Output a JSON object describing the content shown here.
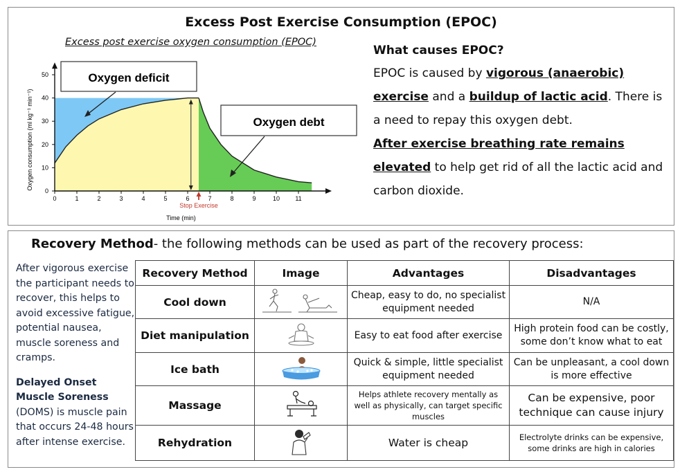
{
  "top": {
    "title": "Excess Post Exercise Consumption (EPOC)",
    "chart_caption": "Excess post exercise oxygen consumption (EPOC)",
    "question": "What causes EPOC?",
    "para1": {
      "t1": "EPOC is caused by ",
      "b1": "vigorous (anaerobic) exercise",
      "t2": " and a ",
      "b2": "buildup of lactic acid",
      "t3": ". There is a need to repay this oxygen debt."
    },
    "para2": {
      "b1": "After exercise breathing rate remains elevated",
      "t1": " to help get rid of all the lactic acid and carbon dioxide."
    }
  },
  "chart_data": {
    "type": "area",
    "title": "Excess post exercise oxygen consumption (EPOC)",
    "xlabel": "Time (min)",
    "ylabel": "Oxygen consumption (ml kg⁻¹ min⁻¹)",
    "xlim": [
      0,
      12
    ],
    "ylim": [
      0,
      55
    ],
    "x_ticks": [
      0,
      1,
      2,
      3,
      4,
      5,
      6,
      7,
      8,
      9,
      10,
      11
    ],
    "y_ticks": [
      0,
      10,
      20,
      30,
      40,
      50
    ],
    "steady_state": 40,
    "stop_exercise_x": 6.5,
    "stop_label": "Stop Exercise",
    "uptake_curve": {
      "x": [
        0,
        0.5,
        1,
        1.5,
        2,
        3,
        4,
        5,
        6,
        6.5
      ],
      "y": [
        12,
        19,
        24,
        28,
        31,
        35,
        37.5,
        39,
        40,
        40
      ]
    },
    "recovery_curve": {
      "x": [
        6.5,
        6.7,
        7,
        7.5,
        8,
        9,
        10,
        11,
        11.6
      ],
      "y": [
        40,
        34,
        27,
        20,
        15,
        9,
        6,
        4,
        3.5
      ]
    },
    "annotations": [
      "Oxygen deficit",
      "Oxygen debt"
    ],
    "colors": {
      "deficit": "#7ec8f5",
      "uptake": "#fdf7b0",
      "debt": "#66cc55",
      "stop_arrow": "#c0392b"
    }
  },
  "recovery": {
    "title_bold": "Recovery Method",
    "title_rest": "- the following methods can be used as part of the recovery process:",
    "side_p1": "After vigorous exercise the participant needs to recover, this helps to avoid excessive fatigue, potential nausea, muscle soreness and cramps.",
    "side_p2_bold": "Delayed Onset Muscle Soreness",
    "side_p2_rest": " (DOMS) is muscle pain that occurs 24-48 hours after intense exercise.",
    "headers": [
      "Recovery Method",
      "Image",
      "Advantages",
      "Disadvantages"
    ],
    "rows": [
      {
        "method": "Cool down",
        "icon": "runner-stretch-icon",
        "adv": "Cheap, easy to do, no specialist equipment needed",
        "dis": "N/A"
      },
      {
        "method": "Diet manipulation",
        "icon": "person-eating-icon",
        "adv": "Easy to eat food after exercise",
        "dis": "High protein food can be costly, some don’t know what to eat"
      },
      {
        "method": "Ice bath",
        "icon": "ice-bath-icon",
        "adv": "Quick & simple, little specialist equipment needed",
        "dis": "Can be unpleasant, a cool down is more effective"
      },
      {
        "method": "Massage",
        "icon": "massage-table-icon",
        "adv": "Helps athlete recovery mentally as well as physically, can target specific muscles",
        "dis": "Can be expensive, poor technique can cause injury"
      },
      {
        "method": "Rehydration",
        "icon": "person-drinking-icon",
        "adv": "Water is cheap",
        "dis": "Electrolyte drinks can be expensive, some drinks are high in calories"
      }
    ]
  }
}
